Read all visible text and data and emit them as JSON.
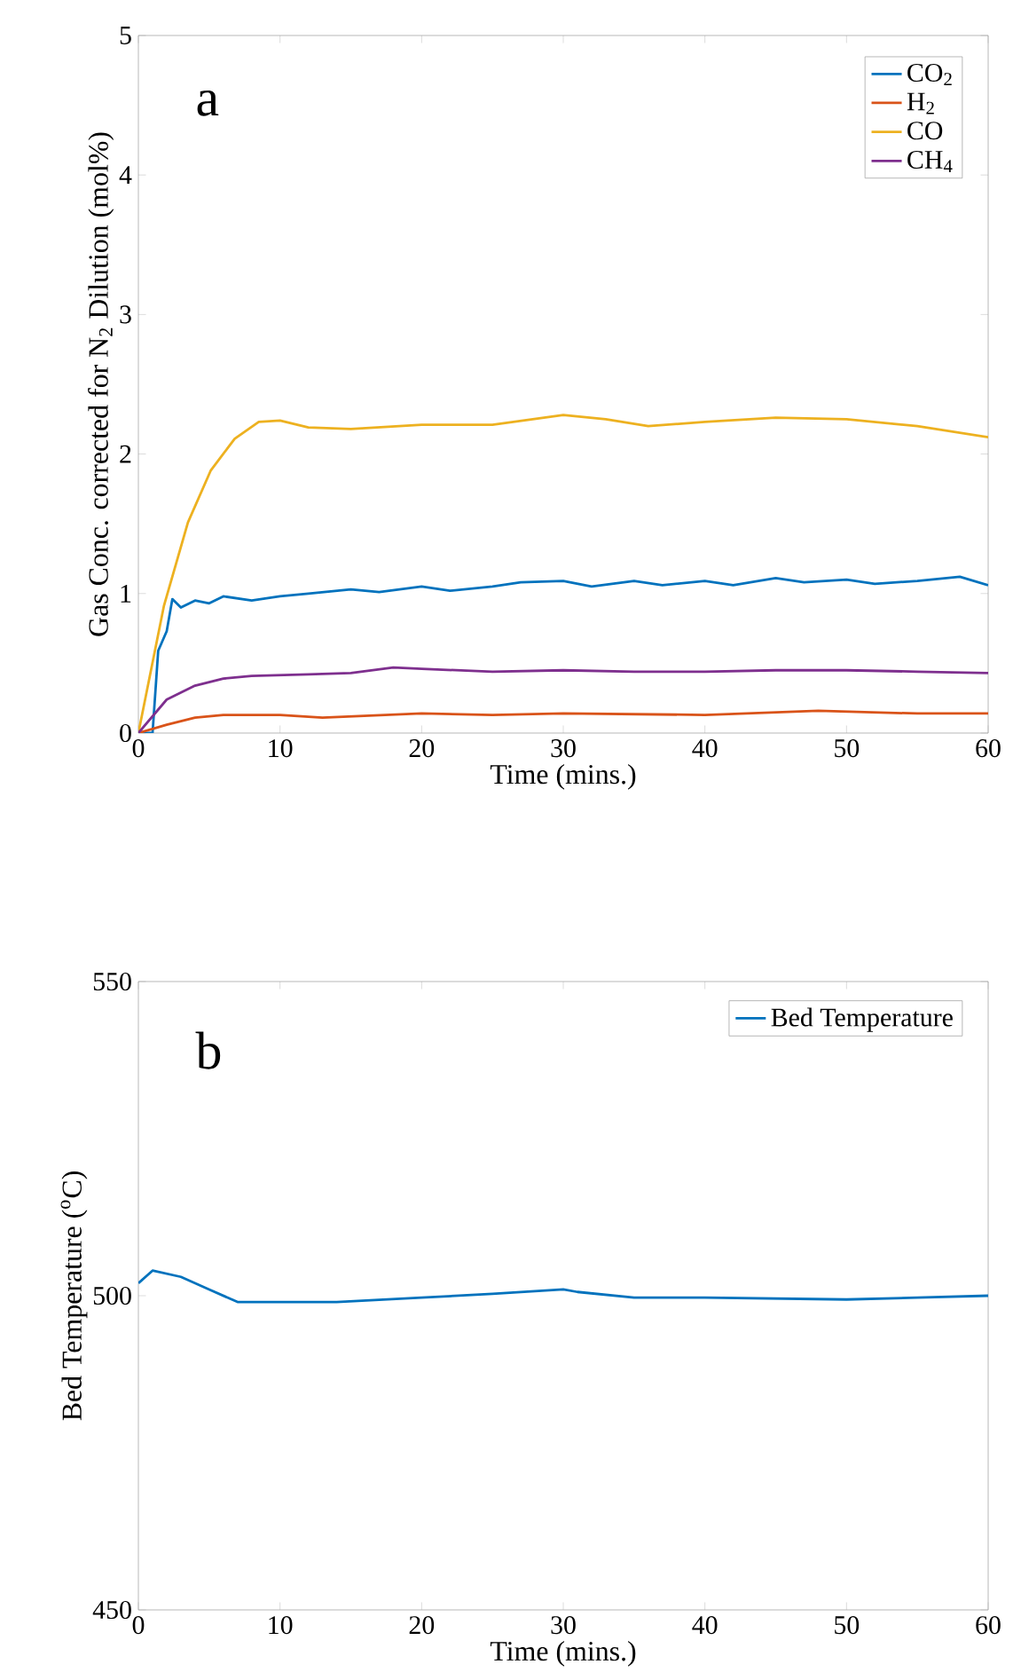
{
  "chart_data": [
    {
      "type": "line",
      "xlabel": "Time (mins.)",
      "ylabel": "Gas Conc. corrected for N$_{2}$ Dilution (mol%)",
      "annotations": [
        "a"
      ],
      "xlim": [
        0,
        60
      ],
      "ylim": [
        0,
        5
      ],
      "xticks": [
        0,
        10,
        20,
        30,
        40,
        50,
        60
      ],
      "yticks": [
        0,
        1,
        2,
        3,
        4,
        5
      ],
      "legend": "top right",
      "series": [
        {
          "name": "CO$_{2}$",
          "color": "#0072bd",
          "x": [
            0,
            1,
            1.4,
            2,
            2.4,
            3,
            4,
            5,
            6,
            8,
            10,
            12,
            15,
            17,
            20,
            22,
            25,
            27,
            30,
            32,
            35,
            37,
            40,
            42,
            45,
            47,
            50,
            52,
            55,
            58,
            60
          ],
          "values": [
            0,
            0,
            0.59,
            0.73,
            0.96,
            0.9,
            0.95,
            0.93,
            0.98,
            0.95,
            0.98,
            1.0,
            1.03,
            1.01,
            1.05,
            1.02,
            1.05,
            1.08,
            1.09,
            1.05,
            1.09,
            1.06,
            1.09,
            1.06,
            1.11,
            1.08,
            1.1,
            1.07,
            1.09,
            1.12,
            1.06
          ]
        },
        {
          "name": "H$_{2}$",
          "color": "#d95319",
          "x": [
            0,
            2,
            4,
            6,
            10,
            13,
            20,
            25,
            30,
            40,
            48,
            55,
            60
          ],
          "values": [
            0,
            0.06,
            0.11,
            0.13,
            0.13,
            0.11,
            0.14,
            0.13,
            0.14,
            0.13,
            0.16,
            0.14,
            0.14
          ]
        },
        {
          "name": "CO",
          "color": "#edb120",
          "x": [
            0,
            1.8,
            3.5,
            5.1,
            6.8,
            8.5,
            10,
            12,
            15,
            20,
            25,
            30,
            33,
            36,
            40,
            45,
            50,
            55,
            60
          ],
          "values": [
            0,
            0.91,
            1.51,
            1.88,
            2.11,
            2.23,
            2.24,
            2.19,
            2.18,
            2.21,
            2.21,
            2.28,
            2.25,
            2.2,
            2.23,
            2.26,
            2.25,
            2.2,
            2.12
          ]
        },
        {
          "name": "CH$_{4}$",
          "color": "#7e2f8e",
          "x": [
            0,
            2,
            4,
            6,
            8,
            12,
            15,
            18,
            20,
            25,
            30,
            35,
            40,
            45,
            50,
            55,
            60
          ],
          "values": [
            0,
            0.24,
            0.34,
            0.39,
            0.41,
            0.42,
            0.43,
            0.47,
            0.46,
            0.44,
            0.45,
            0.44,
            0.44,
            0.45,
            0.45,
            0.44,
            0.43
          ]
        }
      ]
    },
    {
      "type": "line",
      "xlabel": "Time (mins.)",
      "ylabel": "Bed Temperature ($^{o}$C)",
      "annotations": [
        "b"
      ],
      "xlim": [
        0,
        60
      ],
      "ylim": [
        450,
        550
      ],
      "xticks": [
        0,
        10,
        20,
        30,
        40,
        50,
        60
      ],
      "yticks": [
        450,
        500,
        550
      ],
      "legend": "top right",
      "series": [
        {
          "name": "Bed Temperature",
          "color": "#0072bd",
          "x": [
            0,
            1,
            3,
            5,
            7,
            10,
            14,
            20,
            25,
            30,
            31,
            35,
            40,
            50,
            55,
            60
          ],
          "values": [
            502,
            504,
            503,
            501,
            499,
            499,
            499,
            499.7,
            500.3,
            501,
            500.6,
            499.7,
            499.7,
            499.4,
            499.7,
            500
          ]
        }
      ]
    }
  ]
}
